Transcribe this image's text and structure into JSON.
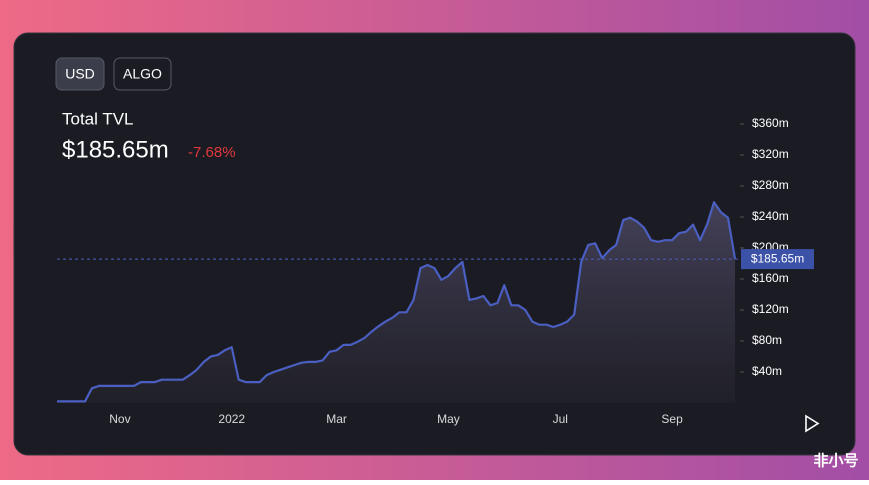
{
  "buttons": [
    "USD",
    "ALGO"
  ],
  "watermark": "非小号",
  "chart_data": {
    "type": "area",
    "title": "Total TVL",
    "change": "-7.68%",
    "reference": {
      "value": 185.65,
      "label": "$185.65m"
    },
    "categories": [
      null,
      null,
      null,
      null,
      null,
      null,
      null,
      null,
      null,
      "Nov",
      null,
      null,
      null,
      null,
      null,
      null,
      null,
      null,
      null,
      null,
      null,
      null,
      null,
      null,
      null,
      "2022",
      null,
      null,
      null,
      null,
      null,
      null,
      null,
      null,
      null,
      null,
      null,
      null,
      null,
      null,
      "Mar",
      null,
      null,
      null,
      null,
      null,
      null,
      null,
      null,
      null,
      null,
      null,
      null,
      null,
      null,
      null,
      "May",
      null,
      null,
      null,
      null,
      null,
      null,
      null,
      null,
      null,
      null,
      null,
      null,
      null,
      null,
      null,
      "Jul",
      null,
      null,
      null,
      null,
      null,
      null,
      null,
      null,
      null,
      null,
      null,
      null,
      null,
      null,
      null,
      "Sep",
      null,
      null,
      null,
      null,
      null,
      null,
      null,
      null,
      null
    ],
    "series": [
      {
        "name": "TVL",
        "color": "#4a5fc1",
        "values": [
          2,
          2,
          2,
          2,
          2,
          19,
          22,
          22,
          22,
          22,
          22,
          22,
          27,
          27,
          27,
          30,
          30,
          30,
          30,
          36,
          43,
          53,
          60,
          62,
          68,
          72,
          30,
          27,
          27,
          27,
          36,
          40,
          43,
          46,
          49,
          52,
          53,
          53,
          55,
          66,
          68,
          75,
          75,
          79,
          84,
          92,
          99,
          105,
          110,
          117,
          117,
          133,
          174,
          178,
          174,
          159,
          164,
          174,
          182,
          133,
          135,
          138,
          126,
          129,
          152,
          126,
          126,
          120,
          105,
          101,
          101,
          98,
          101,
          105,
          114,
          182,
          204,
          206,
          187,
          197,
          204,
          236,
          239,
          234,
          226,
          210,
          208,
          210,
          210,
          219,
          221,
          230,
          210,
          230,
          259,
          246,
          239,
          186
        ]
      }
    ],
    "ylim": [
      0,
      378
    ],
    "yticks": [
      {
        "value": 40,
        "label": "$40m"
      },
      {
        "value": 80,
        "label": "$80m"
      },
      {
        "value": 120,
        "label": "$120m"
      },
      {
        "value": 160,
        "label": "$160m"
      },
      {
        "value": 200,
        "label": "$200m"
      },
      {
        "value": 240,
        "label": "$240m"
      },
      {
        "value": 280,
        "label": "$280m"
      },
      {
        "value": 320,
        "label": "$320m"
      },
      {
        "value": 360,
        "label": "$360m"
      }
    ]
  }
}
